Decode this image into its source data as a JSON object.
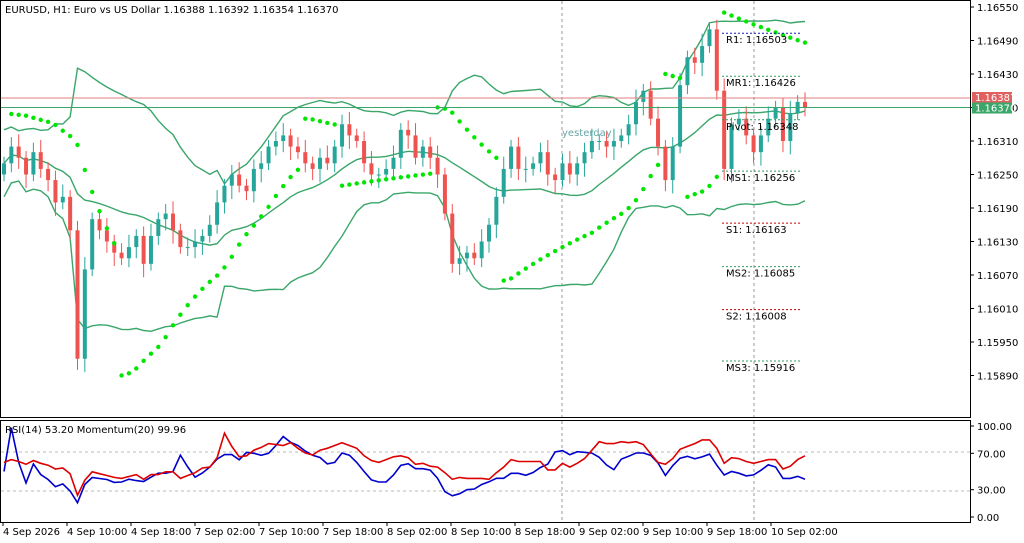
{
  "header": {
    "symbol_line": "EURUSD, H1:  Euro vs US Dollar  1.16388 1.16392 1.16354 1.16370"
  },
  "colors": {
    "bull": "#26a69a",
    "bear": "#ef5350",
    "bands": "#3aa66a",
    "sar": "#00e600",
    "rsi": "#0000cc",
    "momentum": "#dd0000",
    "bid_line": "#3aa66a",
    "ask_line": "#e06060",
    "level_support": "#cc0000",
    "level_resist": "#1a1aaa"
  },
  "price_axis": {
    "ticks": [
      "1.16550",
      "1.16490",
      "1.16430",
      "1.16370",
      "1.16310",
      "1.16250",
      "1.16190",
      "1.16130",
      "1.16070",
      "1.16010",
      "1.15950",
      "1.15890"
    ],
    "ask_label": "1.16387",
    "bid_label": "1.16370"
  },
  "pivot_levels": [
    {
      "label": "R1: 1.16503",
      "price": 1.16503,
      "kind": "resist"
    },
    {
      "label": "MR1: 1.16426",
      "price": 1.16426,
      "kind": "neutral"
    },
    {
      "label": "Pivot: 1.16348",
      "price": 1.16348,
      "kind": "neutral"
    },
    {
      "label": "MS1: 1.16256",
      "price": 1.16256,
      "kind": "neutral"
    },
    {
      "label": "S1: 1.16163",
      "price": 1.16163,
      "kind": "support"
    },
    {
      "label": "MS2: 1.16085",
      "price": 1.16085,
      "kind": "neutral"
    },
    {
      "label": "S2: 1.16008",
      "price": 1.16008,
      "kind": "support"
    },
    {
      "label": "MS3: 1.15916",
      "price": 1.15916,
      "kind": "neutral"
    }
  ],
  "yesterday_label": "yesterday",
  "indicator": {
    "label": "RSI(14) 53.20 Momentum(20) 99.96",
    "ticks": [
      "100.00",
      "70.00",
      "30.00",
      "0.00"
    ]
  },
  "time_axis": [
    "4 Sep 2026",
    "4 Sep 10:00",
    "4 Sep 18:00",
    "7 Sep 02:00",
    "7 Sep 10:00",
    "7 Sep 18:00",
    "8 Sep 02:00",
    "8 Sep 10:00",
    "8 Sep 18:00",
    "9 Sep 02:00",
    "9 Sep 10:00",
    "9 Sep 18:00",
    "10 Sep 02:00"
  ]
}
